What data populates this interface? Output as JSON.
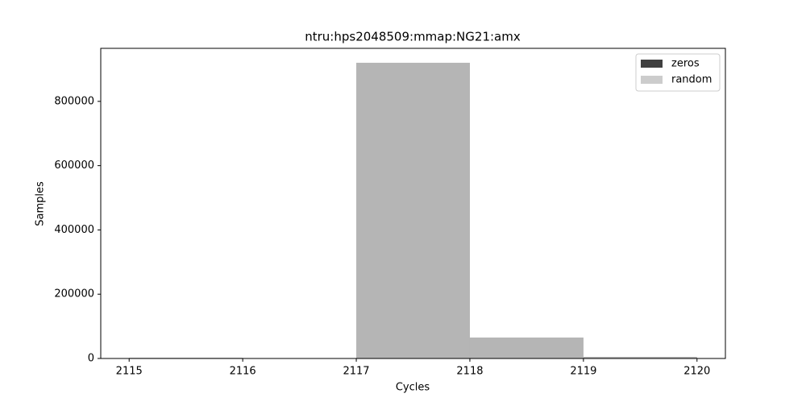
{
  "chart_data": {
    "type": "histogram",
    "title": "ntru:hps2048509:mmap:NG21:amx",
    "xlabel": "Cycles",
    "ylabel": "Samples",
    "bins": [
      2115,
      2116,
      2117,
      2118,
      2119,
      2120
    ],
    "series": [
      {
        "name": "zeros",
        "color": "#404040",
        "values": [
          2000,
          0,
          920000,
          65000,
          5000
        ]
      },
      {
        "name": "random",
        "color": "#cccccc",
        "values": [
          2000,
          0,
          920000,
          65000,
          5000
        ]
      }
    ],
    "xlim": [
      2114.75,
      2120.25
    ],
    "xticks": [
      2115,
      2116,
      2117,
      2118,
      2119,
      2120
    ],
    "ylim": [
      0,
      965000
    ],
    "yticks": [
      0,
      200000,
      400000,
      600000,
      800000
    ],
    "legend": "upper right",
    "grid": false
  }
}
